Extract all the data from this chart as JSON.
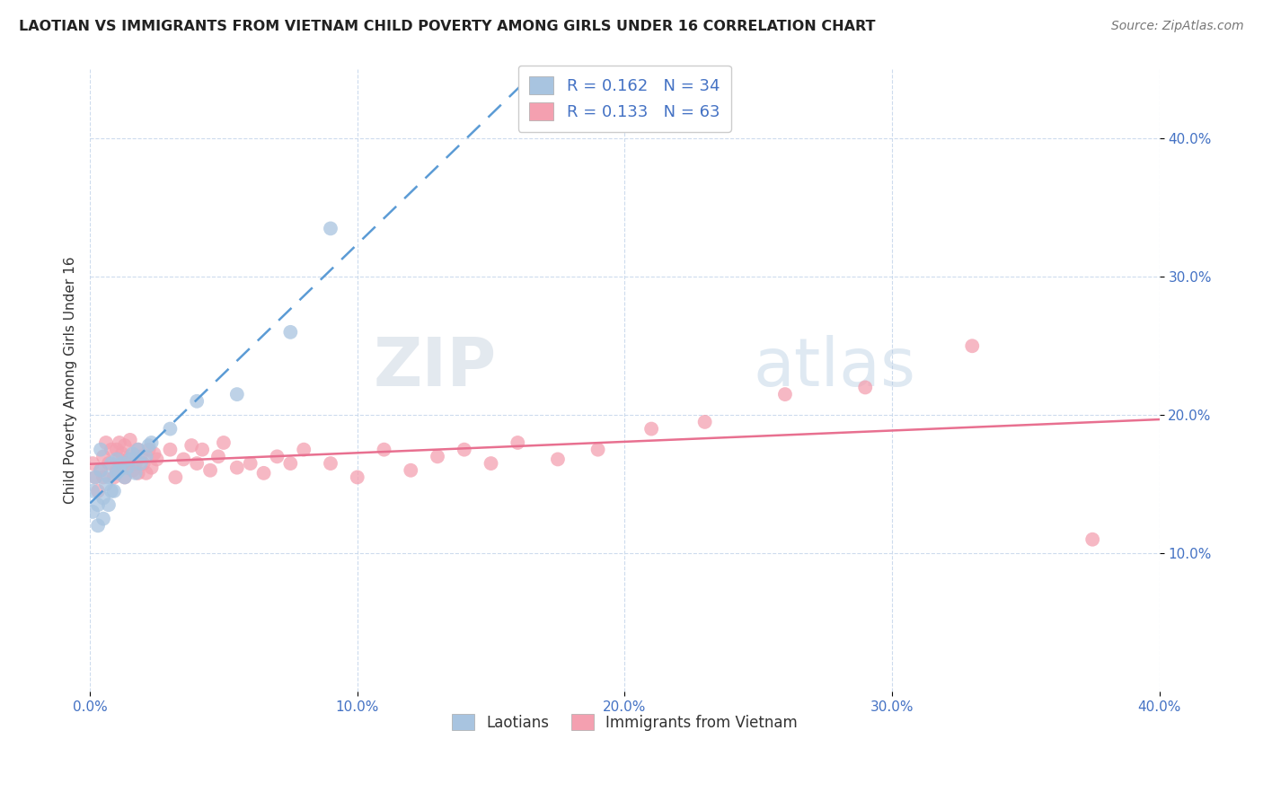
{
  "title": "LAOTIAN VS IMMIGRANTS FROM VIETNAM CHILD POVERTY AMONG GIRLS UNDER 16 CORRELATION CHART",
  "source": "Source: ZipAtlas.com",
  "ylabel": "Child Poverty Among Girls Under 16",
  "xlim": [
    0.0,
    0.4
  ],
  "ylim": [
    0.0,
    0.45
  ],
  "xticks": [
    0.0,
    0.1,
    0.2,
    0.3,
    0.4
  ],
  "xtick_labels": [
    "0.0%",
    "10.0%",
    "20.0%",
    "30.0%",
    "40.0%"
  ],
  "yticks": [
    0.1,
    0.2,
    0.3,
    0.4
  ],
  "ytick_labels": [
    "10.0%",
    "20.0%",
    "30.0%",
    "40.0%"
  ],
  "laotian_R": 0.162,
  "laotian_N": 34,
  "vietnam_R": 0.133,
  "vietnam_N": 63,
  "laotian_color": "#a8c4e0",
  "vietnam_color": "#f4a0b0",
  "laotian_line_color": "#5b9bd5",
  "vietnam_line_color": "#e87090",
  "legend_label_1": "Laotians",
  "legend_label_2": "Immigrants from Vietnam",
  "laotian_x": [
    0.001,
    0.001,
    0.002,
    0.003,
    0.003,
    0.004,
    0.004,
    0.005,
    0.005,
    0.006,
    0.007,
    0.007,
    0.008,
    0.008,
    0.009,
    0.01,
    0.01,
    0.011,
    0.012,
    0.013,
    0.014,
    0.015,
    0.016,
    0.017,
    0.018,
    0.019,
    0.021,
    0.022,
    0.023,
    0.03,
    0.04,
    0.055,
    0.075,
    0.09
  ],
  "laotian_y": [
    0.13,
    0.145,
    0.155,
    0.12,
    0.135,
    0.16,
    0.175,
    0.125,
    0.14,
    0.15,
    0.135,
    0.155,
    0.145,
    0.165,
    0.145,
    0.158,
    0.168,
    0.16,
    0.165,
    0.155,
    0.162,
    0.168,
    0.172,
    0.158,
    0.175,
    0.165,
    0.17,
    0.178,
    0.18,
    0.19,
    0.21,
    0.215,
    0.26,
    0.335
  ],
  "vietnam_x": [
    0.001,
    0.002,
    0.003,
    0.004,
    0.005,
    0.005,
    0.006,
    0.007,
    0.008,
    0.009,
    0.01,
    0.01,
    0.011,
    0.011,
    0.012,
    0.012,
    0.013,
    0.013,
    0.014,
    0.015,
    0.015,
    0.016,
    0.017,
    0.018,
    0.018,
    0.019,
    0.02,
    0.021,
    0.022,
    0.023,
    0.024,
    0.025,
    0.03,
    0.032,
    0.035,
    0.038,
    0.04,
    0.042,
    0.045,
    0.048,
    0.05,
    0.055,
    0.06,
    0.065,
    0.07,
    0.075,
    0.08,
    0.09,
    0.1,
    0.11,
    0.12,
    0.13,
    0.14,
    0.15,
    0.16,
    0.175,
    0.19,
    0.21,
    0.23,
    0.26,
    0.29,
    0.33,
    0.375
  ],
  "vietnam_y": [
    0.165,
    0.155,
    0.145,
    0.16,
    0.155,
    0.17,
    0.18,
    0.165,
    0.175,
    0.155,
    0.16,
    0.175,
    0.168,
    0.18,
    0.162,
    0.172,
    0.155,
    0.178,
    0.165,
    0.17,
    0.182,
    0.16,
    0.165,
    0.175,
    0.158,
    0.17,
    0.165,
    0.158,
    0.175,
    0.162,
    0.172,
    0.168,
    0.175,
    0.155,
    0.168,
    0.178,
    0.165,
    0.175,
    0.16,
    0.17,
    0.18,
    0.162,
    0.165,
    0.158,
    0.17,
    0.165,
    0.175,
    0.165,
    0.155,
    0.175,
    0.16,
    0.17,
    0.175,
    0.165,
    0.18,
    0.168,
    0.175,
    0.19,
    0.195,
    0.215,
    0.22,
    0.25,
    0.11
  ]
}
